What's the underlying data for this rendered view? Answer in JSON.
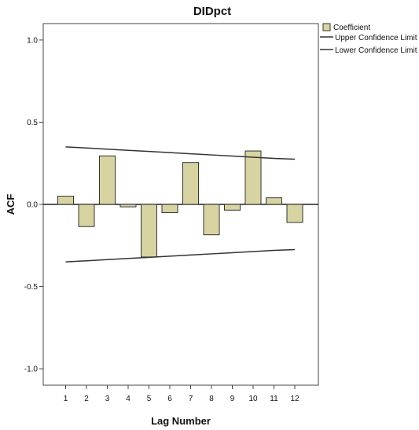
{
  "chart_data": {
    "type": "bar",
    "title": "DIDpct",
    "xlabel": "Lag Number",
    "ylabel": "ACF",
    "categories": [
      "1",
      "2",
      "3",
      "4",
      "5",
      "6",
      "7",
      "8",
      "9",
      "10",
      "11",
      "12"
    ],
    "series": [
      {
        "name": "Coefficient",
        "type": "bar",
        "values": [
          0.05,
          -0.135,
          0.295,
          -0.015,
          -0.32,
          -0.05,
          0.255,
          -0.185,
          -0.035,
          0.325,
          0.04,
          -0.11
        ]
      },
      {
        "name": "Upper Confidence Limit",
        "type": "line",
        "values": [
          0.35,
          0.343,
          0.336,
          0.329,
          0.322,
          0.315,
          0.308,
          0.301,
          0.294,
          0.287,
          0.28,
          0.275
        ]
      },
      {
        "name": "Lower Confidence Limit",
        "type": "line",
        "values": [
          -0.35,
          -0.343,
          -0.336,
          -0.329,
          -0.322,
          -0.315,
          -0.308,
          -0.301,
          -0.294,
          -0.287,
          -0.28,
          -0.275
        ]
      }
    ],
    "ylim": [
      -1.1,
      1.1
    ],
    "yticks": [
      "1.0",
      "0.5",
      "0.0",
      "-0.5",
      "-1.0"
    ],
    "ytick_values": [
      1.0,
      0.5,
      0.0,
      -0.5,
      -1.0
    ],
    "grid": false,
    "legend_position": "top-right",
    "colors": {
      "bar_fill": "#d8d4a2",
      "bar_stroke": "#333333",
      "line": "#333333",
      "zero_line": "#222222",
      "frame": "#444444"
    }
  }
}
